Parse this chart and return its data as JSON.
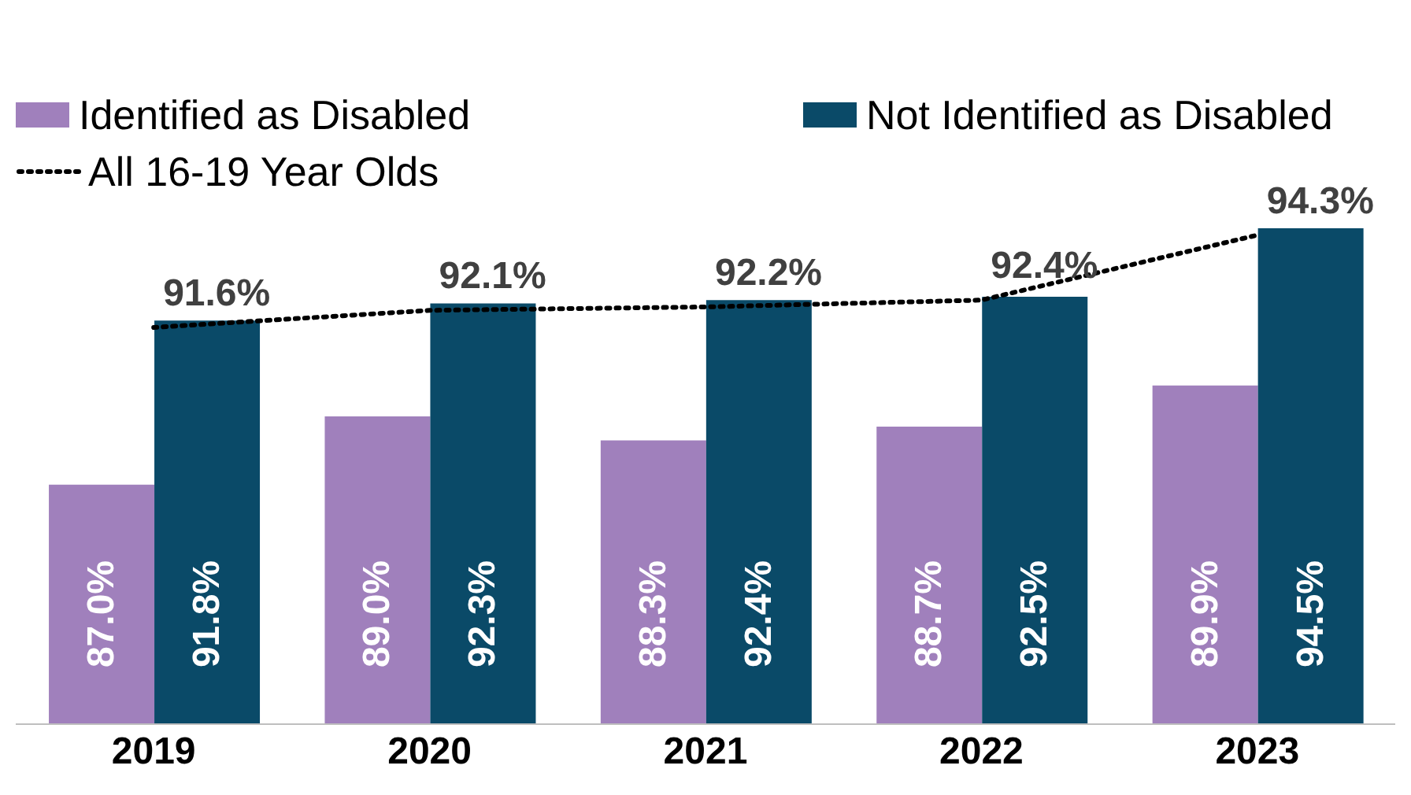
{
  "chart_data": {
    "type": "bar",
    "categories": [
      "2019",
      "2020",
      "2021",
      "2022",
      "2023"
    ],
    "series": [
      {
        "name": "Identified as Disabled",
        "color": "#a080bc",
        "values": [
          87.0,
          89.0,
          88.3,
          88.7,
          89.9
        ],
        "value_labels": [
          "87.0%",
          "89.0%",
          "88.3%",
          "88.7%",
          "89.9%"
        ]
      },
      {
        "name": "Not Identified as Disabled",
        "color": "#0a4a68",
        "values": [
          91.8,
          92.3,
          92.4,
          92.5,
          94.5
        ],
        "value_labels": [
          "91.8%",
          "92.3%",
          "92.4%",
          "92.5%",
          "94.5%"
        ]
      },
      {
        "name": "All 16-19 Year Olds",
        "type": "line",
        "color": "#000000",
        "line_style": "dotted",
        "values": [
          91.6,
          92.1,
          92.2,
          92.4,
          94.3
        ],
        "value_labels": [
          "91.6%",
          "92.1%",
          "92.2%",
          "92.4%",
          "94.3%"
        ]
      }
    ],
    "ylim": [
      80,
      94.5
    ],
    "tick_labels": "x",
    "legend": "top left",
    "grid": false,
    "marker": "none"
  }
}
